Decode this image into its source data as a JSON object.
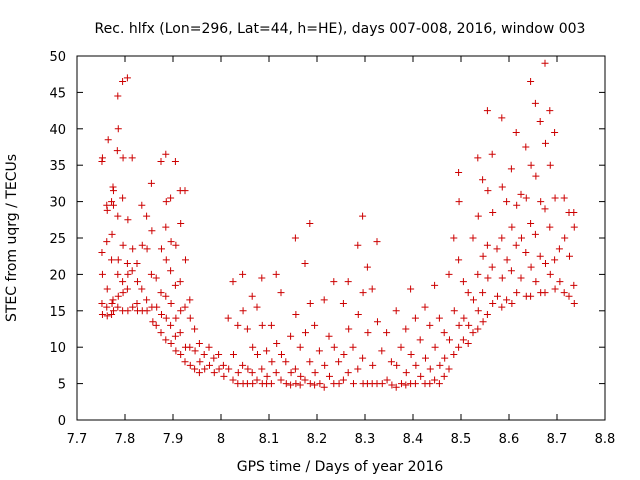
{
  "chart_data": {
    "type": "scatter",
    "title": "Rec. hlfx (Lon=296, Lat=44, h=HE), days 007-008, 2016, window 003",
    "xlabel": "GPS time / Days of year 2016",
    "ylabel": "STEC from uqrg / TECUs",
    "xlim": [
      7.7,
      8.8
    ],
    "ylim": [
      0,
      50
    ],
    "xticks": [
      "7.7",
      "7.8",
      "7.9",
      "8",
      "8.1",
      "8.2",
      "8.3",
      "8.4",
      "8.5",
      "8.6",
      "8.7",
      "8.8"
    ],
    "yticks": [
      "0",
      "5",
      "10",
      "15",
      "20",
      "25",
      "30",
      "35",
      "40",
      "45",
      "50"
    ],
    "marker": "+",
    "grid": false,
    "color": "#cc0000",
    "points": [
      [
        7.752,
        35.5
      ],
      [
        7.753,
        36.0
      ],
      [
        7.752,
        23.0
      ],
      [
        7.753,
        20.0
      ],
      [
        7.752,
        16.0
      ],
      [
        7.753,
        14.5
      ],
      [
        7.762,
        29.5
      ],
      [
        7.763,
        28.8
      ],
      [
        7.762,
        24.5
      ],
      [
        7.763,
        18.0
      ],
      [
        7.762,
        15.5
      ],
      [
        7.763,
        14.3
      ],
      [
        7.765,
        38.5
      ],
      [
        7.772,
        30.0
      ],
      [
        7.773,
        25.5
      ],
      [
        7.772,
        22.0
      ],
      [
        7.773,
        16.0
      ],
      [
        7.772,
        14.5
      ],
      [
        7.775,
        32.0
      ],
      [
        7.776,
        31.5
      ],
      [
        7.776,
        29.5
      ],
      [
        7.775,
        16.5
      ],
      [
        7.776,
        15.0
      ],
      [
        7.785,
        44.5
      ],
      [
        7.786,
        40.0
      ],
      [
        7.784,
        37.0
      ],
      [
        7.785,
        28.0
      ],
      [
        7.786,
        22.0
      ],
      [
        7.785,
        20.0
      ],
      [
        7.786,
        17.0
      ],
      [
        7.785,
        15.5
      ],
      [
        7.795,
        46.5
      ],
      [
        7.796,
        36.0
      ],
      [
        7.795,
        30.5
      ],
      [
        7.796,
        24.0
      ],
      [
        7.795,
        19.0
      ],
      [
        7.796,
        17.5
      ],
      [
        7.795,
        15.0
      ],
      [
        7.805,
        47.0
      ],
      [
        7.806,
        27.5
      ],
      [
        7.805,
        21.5
      ],
      [
        7.806,
        20.0
      ],
      [
        7.805,
        18.0
      ],
      [
        7.806,
        15.0
      ],
      [
        7.815,
        36.0
      ],
      [
        7.816,
        23.5
      ],
      [
        7.815,
        20.5
      ],
      [
        7.816,
        15.5
      ],
      [
        7.825,
        21.5
      ],
      [
        7.826,
        19.0
      ],
      [
        7.825,
        16.0
      ],
      [
        7.826,
        15.0
      ],
      [
        7.835,
        29.5
      ],
      [
        7.836,
        24.0
      ],
      [
        7.835,
        18.0
      ],
      [
        7.836,
        15.0
      ],
      [
        7.845,
        28.0
      ],
      [
        7.846,
        23.5
      ],
      [
        7.845,
        16.5
      ],
      [
        7.846,
        15.0
      ],
      [
        7.855,
        32.5
      ],
      [
        7.856,
        26.0
      ],
      [
        7.855,
        20.0
      ],
      [
        7.856,
        15.5
      ],
      [
        7.858,
        13.5
      ],
      [
        7.865,
        19.5
      ],
      [
        7.866,
        15.5
      ],
      [
        7.865,
        13.0
      ],
      [
        7.875,
        35.5
      ],
      [
        7.876,
        23.5
      ],
      [
        7.875,
        17.5
      ],
      [
        7.876,
        14.5
      ],
      [
        7.875,
        12.0
      ],
      [
        7.885,
        36.5
      ],
      [
        7.886,
        30.0
      ],
      [
        7.885,
        26.5
      ],
      [
        7.886,
        22.0
      ],
      [
        7.885,
        17.0
      ],
      [
        7.886,
        14.0
      ],
      [
        7.885,
        11.0
      ],
      [
        7.895,
        30.5
      ],
      [
        7.896,
        24.5
      ],
      [
        7.895,
        20.5
      ],
      [
        7.896,
        16.0
      ],
      [
        7.895,
        13.0
      ],
      [
        7.896,
        10.5
      ],
      [
        7.905,
        35.5
      ],
      [
        7.906,
        24.0
      ],
      [
        7.905,
        18.5
      ],
      [
        7.906,
        14.0
      ],
      [
        7.905,
        11.5
      ],
      [
        7.906,
        9.5
      ],
      [
        7.915,
        31.5
      ],
      [
        7.916,
        27.0
      ],
      [
        7.915,
        19.0
      ],
      [
        7.916,
        15.0
      ],
      [
        7.915,
        12.0
      ],
      [
        7.916,
        9.0
      ],
      [
        7.925,
        31.5
      ],
      [
        7.926,
        22.0
      ],
      [
        7.925,
        15.5
      ],
      [
        7.926,
        10.0
      ],
      [
        7.925,
        8.0
      ],
      [
        7.935,
        16.5
      ],
      [
        7.936,
        14.0
      ],
      [
        7.935,
        10.0
      ],
      [
        7.936,
        7.5
      ],
      [
        7.945,
        12.5
      ],
      [
        7.946,
        9.5
      ],
      [
        7.945,
        7.0
      ],
      [
        7.955,
        10.5
      ],
      [
        7.956,
        8.0
      ],
      [
        7.955,
        6.5
      ],
      [
        7.965,
        9.0
      ],
      [
        7.966,
        7.0
      ],
      [
        7.975,
        10.0
      ],
      [
        7.976,
        7.5
      ],
      [
        7.985,
        8.5
      ],
      [
        7.986,
        6.5
      ],
      [
        7.995,
        9.0
      ],
      [
        7.996,
        7.0
      ],
      [
        8.005,
        7.5
      ],
      [
        8.006,
        6.0
      ],
      [
        8.015,
        14.0
      ],
      [
        8.016,
        7.0
      ],
      [
        8.025,
        19.0
      ],
      [
        8.026,
        9.0
      ],
      [
        8.025,
        5.5
      ],
      [
        8.035,
        13.0
      ],
      [
        8.036,
        6.5
      ],
      [
        8.035,
        5.0
      ],
      [
        8.045,
        20.0
      ],
      [
        8.046,
        15.0
      ],
      [
        8.045,
        7.5
      ],
      [
        8.046,
        5.0
      ],
      [
        8.055,
        12.5
      ],
      [
        8.056,
        7.0
      ],
      [
        8.055,
        5.0
      ],
      [
        8.065,
        17.0
      ],
      [
        8.066,
        10.0
      ],
      [
        8.065,
        6.5
      ],
      [
        8.066,
        5.0
      ],
      [
        8.075,
        15.5
      ],
      [
        8.076,
        9.0
      ],
      [
        8.075,
        5.5
      ],
      [
        8.085,
        19.5
      ],
      [
        8.086,
        13.0
      ],
      [
        8.085,
        7.0
      ],
      [
        8.086,
        5.0
      ],
      [
        8.095,
        9.5
      ],
      [
        8.096,
        6.0
      ],
      [
        8.095,
        5.0
      ],
      [
        8.105,
        13.0
      ],
      [
        8.106,
        8.0
      ],
      [
        8.105,
        5.0
      ],
      [
        8.115,
        20.0
      ],
      [
        8.116,
        10.5
      ],
      [
        8.115,
        6.5
      ],
      [
        8.125,
        17.5
      ],
      [
        8.126,
        9.0
      ],
      [
        8.125,
        5.5
      ],
      [
        8.135,
        8.0
      ],
      [
        8.136,
        5.0
      ],
      [
        8.145,
        11.5
      ],
      [
        8.146,
        6.5
      ],
      [
        8.145,
        4.8
      ],
      [
        8.155,
        25.0
      ],
      [
        8.156,
        14.5
      ],
      [
        8.155,
        7.0
      ],
      [
        8.156,
        5.0
      ],
      [
        8.165,
        10.0
      ],
      [
        8.166,
        6.0
      ],
      [
        8.165,
        4.8
      ],
      [
        8.175,
        21.5
      ],
      [
        8.176,
        12.0
      ],
      [
        8.175,
        5.5
      ],
      [
        8.185,
        27.0
      ],
      [
        8.186,
        16.0
      ],
      [
        8.185,
        8.0
      ],
      [
        8.186,
        5.0
      ],
      [
        8.195,
        13.0
      ],
      [
        8.196,
        6.5
      ],
      [
        8.195,
        4.8
      ],
      [
        8.205,
        9.5
      ],
      [
        8.206,
        5.0
      ],
      [
        8.215,
        16.5
      ],
      [
        8.216,
        7.5
      ],
      [
        8.215,
        4.5
      ],
      [
        8.225,
        11.5
      ],
      [
        8.226,
        6.0
      ],
      [
        8.235,
        19.0
      ],
      [
        8.236,
        10.0
      ],
      [
        8.235,
        5.0
      ],
      [
        8.245,
        8.0
      ],
      [
        8.246,
        5.0
      ],
      [
        8.255,
        16.0
      ],
      [
        8.256,
        9.0
      ],
      [
        8.255,
        5.5
      ],
      [
        8.265,
        19.0
      ],
      [
        8.266,
        12.5
      ],
      [
        8.265,
        6.5
      ],
      [
        8.275,
        10.0
      ],
      [
        8.276,
        5.0
      ],
      [
        8.285,
        24.0
      ],
      [
        8.286,
        14.5
      ],
      [
        8.285,
        7.0
      ],
      [
        8.295,
        28.0
      ],
      [
        8.296,
        17.5
      ],
      [
        8.295,
        8.5
      ],
      [
        8.296,
        5.0
      ],
      [
        8.305,
        21.0
      ],
      [
        8.306,
        12.0
      ],
      [
        8.305,
        5.0
      ],
      [
        8.315,
        18.0
      ],
      [
        8.316,
        7.5
      ],
      [
        8.315,
        5.0
      ],
      [
        8.325,
        24.5
      ],
      [
        8.326,
        13.5
      ],
      [
        8.325,
        5.0
      ],
      [
        8.335,
        9.5
      ],
      [
        8.336,
        5.0
      ],
      [
        8.345,
        12.0
      ],
      [
        8.346,
        5.5
      ],
      [
        8.355,
        8.0
      ],
      [
        8.356,
        4.8
      ],
      [
        8.365,
        15.0
      ],
      [
        8.366,
        7.5
      ],
      [
        8.365,
        4.5
      ],
      [
        8.375,
        10.0
      ],
      [
        8.376,
        5.0
      ],
      [
        8.385,
        12.5
      ],
      [
        8.386,
        6.5
      ],
      [
        8.385,
        4.8
      ],
      [
        8.395,
        18.0
      ],
      [
        8.396,
        9.0
      ],
      [
        8.395,
        5.0
      ],
      [
        8.405,
        14.0
      ],
      [
        8.406,
        7.5
      ],
      [
        8.405,
        5.0
      ],
      [
        8.415,
        11.0
      ],
      [
        8.416,
        6.0
      ],
      [
        8.425,
        15.5
      ],
      [
        8.426,
        8.5
      ],
      [
        8.425,
        5.0
      ],
      [
        8.435,
        13.0
      ],
      [
        8.436,
        7.0
      ],
      [
        8.435,
        5.0
      ],
      [
        8.445,
        18.5
      ],
      [
        8.446,
        10.0
      ],
      [
        8.445,
        5.5
      ],
      [
        8.455,
        14.0
      ],
      [
        8.456,
        7.5
      ],
      [
        8.455,
        5.0
      ],
      [
        8.465,
        12.0
      ],
      [
        8.466,
        8.5
      ],
      [
        8.465,
        6.0
      ],
      [
        8.475,
        20.0
      ],
      [
        8.476,
        11.0
      ],
      [
        8.475,
        7.0
      ],
      [
        8.485,
        25.0
      ],
      [
        8.486,
        15.0
      ],
      [
        8.485,
        9.0
      ],
      [
        8.495,
        34.0
      ],
      [
        8.496,
        30.0
      ],
      [
        8.495,
        22.0
      ],
      [
        8.496,
        13.0
      ],
      [
        8.495,
        10.0
      ],
      [
        8.505,
        19.0
      ],
      [
        8.506,
        14.0
      ],
      [
        8.505,
        11.0
      ],
      [
        8.515,
        17.5
      ],
      [
        8.516,
        13.0
      ],
      [
        8.515,
        10.5
      ],
      [
        8.525,
        25.0
      ],
      [
        8.526,
        16.5
      ],
      [
        8.525,
        12.0
      ],
      [
        8.535,
        36.0
      ],
      [
        8.536,
        28.0
      ],
      [
        8.535,
        20.0
      ],
      [
        8.536,
        15.0
      ],
      [
        8.535,
        12.5
      ],
      [
        8.545,
        33.0
      ],
      [
        8.546,
        22.5
      ],
      [
        8.545,
        17.5
      ],
      [
        8.546,
        13.5
      ],
      [
        8.555,
        42.5
      ],
      [
        8.556,
        31.5
      ],
      [
        8.555,
        24.0
      ],
      [
        8.556,
        19.5
      ],
      [
        8.555,
        14.5
      ],
      [
        8.565,
        36.5
      ],
      [
        8.566,
        28.5
      ],
      [
        8.565,
        21.0
      ],
      [
        8.566,
        16.0
      ],
      [
        8.575,
        23.5
      ],
      [
        8.576,
        17.0
      ],
      [
        8.585,
        41.5
      ],
      [
        8.586,
        32.0
      ],
      [
        8.585,
        25.0
      ],
      [
        8.586,
        19.5
      ],
      [
        8.585,
        15.5
      ],
      [
        8.595,
        30.0
      ],
      [
        8.596,
        22.0
      ],
      [
        8.595,
        16.5
      ],
      [
        8.605,
        34.5
      ],
      [
        8.606,
        26.5
      ],
      [
        8.605,
        20.5
      ],
      [
        8.606,
        16.0
      ],
      [
        8.615,
        39.5
      ],
      [
        8.616,
        29.5
      ],
      [
        8.615,
        24.0
      ],
      [
        8.616,
        17.5
      ],
      [
        8.625,
        31.0
      ],
      [
        8.626,
        25.0
      ],
      [
        8.625,
        19.5
      ],
      [
        8.635,
        37.5
      ],
      [
        8.636,
        30.5
      ],
      [
        8.635,
        23.0
      ],
      [
        8.636,
        17.0
      ],
      [
        8.645,
        46.5
      ],
      [
        8.646,
        35.0
      ],
      [
        8.645,
        27.0
      ],
      [
        8.646,
        21.0
      ],
      [
        8.645,
        17.0
      ],
      [
        8.655,
        43.5
      ],
      [
        8.656,
        33.5
      ],
      [
        8.655,
        25.5
      ],
      [
        8.656,
        19.0
      ],
      [
        8.665,
        41.0
      ],
      [
        8.666,
        30.0
      ],
      [
        8.665,
        22.5
      ],
      [
        8.666,
        17.5
      ],
      [
        8.675,
        49.0
      ],
      [
        8.676,
        38.0
      ],
      [
        8.675,
        29.0
      ],
      [
        8.676,
        21.5
      ],
      [
        8.675,
        17.5
      ],
      [
        8.685,
        42.5
      ],
      [
        8.686,
        35.0
      ],
      [
        8.685,
        26.5
      ],
      [
        8.686,
        20.0
      ],
      [
        8.695,
        39.5
      ],
      [
        8.696,
        30.5
      ],
      [
        8.695,
        22.0
      ],
      [
        8.696,
        18.0
      ],
      [
        8.705,
        23.5
      ],
      [
        8.706,
        19.0
      ],
      [
        8.715,
        30.5
      ],
      [
        8.716,
        25.0
      ],
      [
        8.715,
        17.5
      ],
      [
        8.725,
        28.5
      ],
      [
        8.726,
        22.5
      ],
      [
        8.725,
        17.0
      ],
      [
        8.735,
        28.5
      ],
      [
        8.736,
        26.5
      ],
      [
        8.735,
        18.5
      ],
      [
        8.736,
        16.0
      ]
    ]
  }
}
